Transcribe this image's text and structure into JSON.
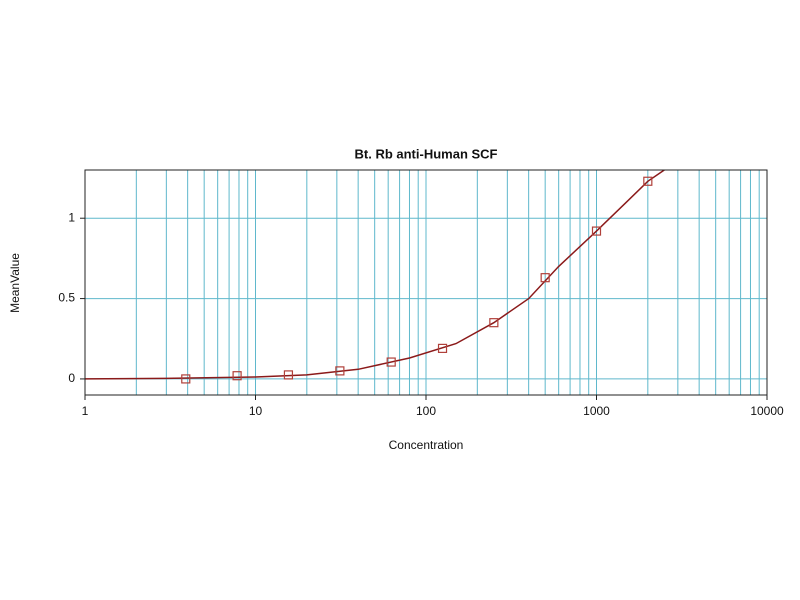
{
  "chart_data": {
    "type": "scatter",
    "title": "Bt. Rb anti-Human SCF",
    "x_label": "Concentration",
    "y_label": "MeanValue",
    "x_scale": "log",
    "xlim": [
      1,
      10000
    ],
    "xticks": [
      1,
      10,
      100,
      1000,
      10000
    ],
    "xgrid": [
      1,
      2,
      3,
      4,
      5,
      6,
      7,
      8,
      9,
      10,
      20,
      30,
      40,
      50,
      60,
      70,
      80,
      90,
      100,
      200,
      300,
      400,
      500,
      600,
      700,
      800,
      900,
      1000,
      2000,
      3000,
      4000,
      5000,
      6000,
      7000,
      8000,
      9000,
      10000
    ],
    "ylim": [
      -0.1,
      1.3
    ],
    "yticks": [
      0,
      0.5,
      1
    ],
    "grid": true,
    "grid_color": "#5fb8cc",
    "points": {
      "color": "#b0403a",
      "x": [
        3.9,
        7.8,
        15.6,
        31.25,
        62.5,
        125,
        250,
        500,
        1000,
        2000
      ],
      "values": [
        0,
        0.02,
        0.025,
        0.05,
        0.105,
        0.19,
        0.35,
        0.63,
        0.92,
        1.23
      ]
    },
    "fit": {
      "color": "#8b1a1a",
      "x": [
        1,
        3,
        10,
        20,
        40,
        80,
        150,
        250,
        400,
        600,
        1000,
        1500,
        2000,
        2500
      ],
      "values": [
        0,
        0.003,
        0.012,
        0.025,
        0.06,
        0.13,
        0.22,
        0.35,
        0.5,
        0.7,
        0.92,
        1.1,
        1.23,
        1.3
      ]
    }
  }
}
